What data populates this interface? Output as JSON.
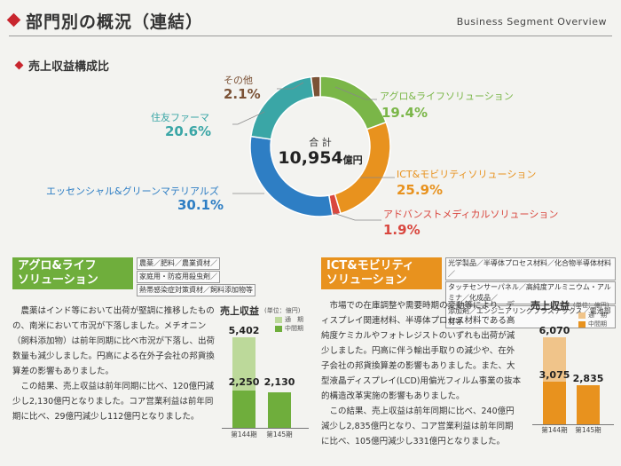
{
  "header": {
    "title": "部門別の概況（連結）",
    "en_title": "Business Segment Overview"
  },
  "section": {
    "title": "売上収益構成比"
  },
  "donut": {
    "total_label": "合 計",
    "total_value": "10,954",
    "total_unit": "億円",
    "segments": [
      {
        "name": "アグロ&ライフソリューション",
        "value": 19.4,
        "pct": "19.4%",
        "color": "#7ab648"
      },
      {
        "name": "ICT&モビリティソリューション",
        "value": 25.9,
        "pct": "25.9%",
        "color": "#e8921e"
      },
      {
        "name": "アドバンストメディカルソリューション",
        "value": 1.9,
        "pct": "1.9%",
        "color": "#d9473f"
      },
      {
        "name": "エッセンシャル&グリーンマテリアルズ",
        "value": 30.1,
        "pct": "30.1%",
        "color": "#2e7ec4"
      },
      {
        "name": "住友ファーマ",
        "value": 20.6,
        "pct": "20.6%",
        "color": "#3aa6a6"
      },
      {
        "name": "その他",
        "value": 2.1,
        "pct": "2.1%",
        "color": "#7b5236"
      }
    ]
  },
  "agro": {
    "title_line1": "アグロ&ライフ",
    "title_line2": "ソリューション",
    "tags": [
      "農薬／肥料／農業資材／",
      "家庭用・防疫用殺虫剤／",
      "熱帯感染症対策資材／飼料添加物等"
    ],
    "paragraph1": "　農薬はインド等において出荷が堅調に推移したものの、南米において市況が下落しました。メチオニン（飼料添加物）は前年同期に比べ市況が下落し、出荷数量も減少しました。円高による在外子会社の邦貨換算差の影響もありました。",
    "paragraph2": "　この結果、売上収益は前年同期に比べ、120億円減少し2,130億円となりました。コア営業利益は前年同期に比べ、29億円減少し112億円となりました。",
    "chart_title": "売上収益",
    "unit": "(単位：億円)",
    "legend_full": "通　期",
    "legend_half": "中間期",
    "bar_values": [
      "5,402",
      "2,250",
      "2,130"
    ],
    "period1": "第144期",
    "period2": "第145期"
  },
  "ict": {
    "title_line1": "ICT&モビリティ",
    "title_line2": "ソリューション",
    "tags": [
      "光学製品／半導体プロセス材料／化合物半導体材料／",
      "タッチセンサーパネル／高純度アルミニウム・アルミナ／化成品／",
      "添加剤／エンジニアリングプラスチックス／電池部材等"
    ],
    "paragraph1": "　市場での在庫調整や需要時期の変動等により、ディスプレイ関連材料、半導体プロセス材料である高純度ケミカルやフォトレジストのいずれも出荷が減少しました。円高に伴う輸出手取りの減少や、在外子会社の邦貨換算差の影響もありました。また、大型液晶ディスプレイ(LCD)用偏光フィルム事業の抜本的構造改革実施の影響もありました。",
    "paragraph2": "　この結果、売上収益は前年同期に比べ、240億円減少し2,835億円となり、コア営業利益は前年同期に比べ、105億円減少し331億円となりました。",
    "chart_title": "売上収益",
    "unit": "(単位：億円)",
    "legend_full": "通　期",
    "legend_half": "中間期",
    "bar_values": [
      "6,070",
      "3,075",
      "2,835"
    ],
    "period1": "第144期",
    "period2": "第145期"
  },
  "chart_data": [
    {
      "type": "pie",
      "title": "売上収益構成比",
      "categories": [
        "アグロ&ライフソリューション",
        "ICT&モビリティソリューション",
        "アドバンストメディカルソリューション",
        "エッセンシャル&グリーンマテリアルズ",
        "住友ファーマ",
        "その他"
      ],
      "values": [
        19.4,
        25.9,
        1.9,
        30.1,
        20.6,
        2.1
      ],
      "total": "10,954億円"
    },
    {
      "type": "bar",
      "title": "アグロ&ライフソリューション 売上収益",
      "categories": [
        "第144期",
        "第145期"
      ],
      "series": [
        {
          "name": "通期",
          "values": [
            5402,
            null
          ]
        },
        {
          "name": "中間期",
          "values": [
            2250,
            2130
          ]
        }
      ],
      "ylabel": "億円"
    },
    {
      "type": "bar",
      "title": "ICT&モビリティソリューション 売上収益",
      "categories": [
        "第144期",
        "第145期"
      ],
      "series": [
        {
          "name": "通期",
          "values": [
            6070,
            null
          ]
        },
        {
          "name": "中間期",
          "values": [
            3075,
            2835
          ]
        }
      ],
      "ylabel": "億円"
    }
  ]
}
